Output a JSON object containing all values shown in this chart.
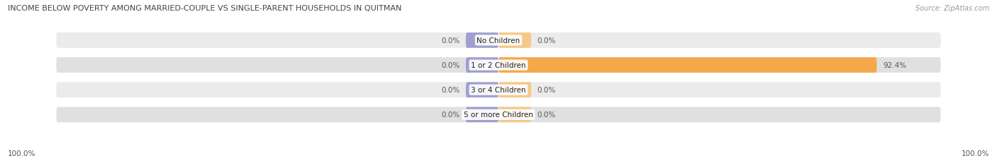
{
  "title": "INCOME BELOW POVERTY AMONG MARRIED-COUPLE VS SINGLE-PARENT HOUSEHOLDS IN QUITMAN",
  "source": "Source: ZipAtlas.com",
  "categories": [
    "No Children",
    "1 or 2 Children",
    "3 or 4 Children",
    "5 or more Children"
  ],
  "married_values": [
    0.0,
    0.0,
    0.0,
    0.0
  ],
  "single_values": [
    0.0,
    92.4,
    0.0,
    0.0
  ],
  "married_color": "#a0a0d0",
  "single_color": "#f5a84a",
  "single_color_light": "#f5c98a",
  "married_color_light": "#c0c0e0",
  "row_bg_color_odd": "#ebebeb",
  "row_bg_color_even": "#e0e0e0",
  "title_color": "#444444",
  "source_color": "#999999",
  "value_color": "#555555",
  "axis_label_left": "100.0%",
  "axis_label_right": "100.0%",
  "max_value": 100.0,
  "stub_size": 8.0,
  "figsize": [
    14.06,
    2.32
  ],
  "dpi": 100
}
